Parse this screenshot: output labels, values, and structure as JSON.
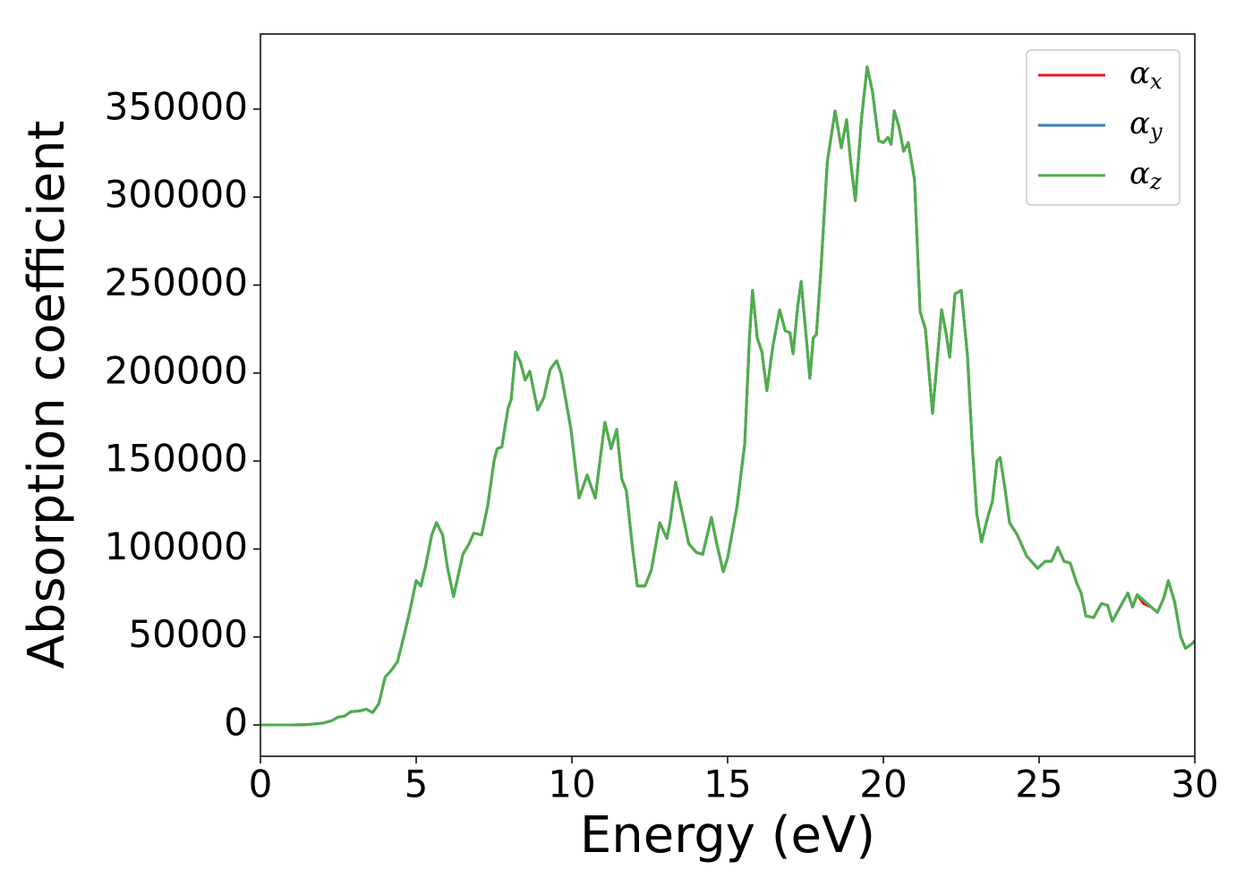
{
  "chart_data": {
    "type": "line",
    "xlabel": "Energy (eV)",
    "ylabel": "Absorption coefficient",
    "xlim": [
      0,
      30
    ],
    "ylim": [
      -17800,
      392700
    ],
    "xticks": [
      0,
      5,
      10,
      15,
      20,
      25,
      30
    ],
    "yticks": [
      0,
      50000,
      100000,
      150000,
      200000,
      250000,
      300000,
      350000
    ],
    "legend": "upper right",
    "x": [
      0,
      1,
      1.5,
      2,
      2.3,
      2.5,
      2.7,
      2.9,
      3.2,
      3.4,
      3.6,
      3.8,
      4.0,
      4.2,
      4.4,
      4.6,
      4.8,
      5.0,
      5.15,
      5.3,
      5.5,
      5.65,
      5.85,
      6.0,
      6.2,
      6.35,
      6.5,
      6.7,
      6.85,
      7.1,
      7.3,
      7.5,
      7.6,
      7.75,
      7.95,
      8.05,
      8.19,
      8.35,
      8.5,
      8.65,
      8.9,
      9.1,
      9.3,
      9.51,
      9.65,
      9.8,
      9.97,
      10.23,
      10.49,
      10.75,
      10.9,
      11.06,
      11.26,
      11.44,
      11.6,
      11.75,
      11.95,
      12.1,
      12.35,
      12.55,
      12.82,
      13.05,
      13.15,
      13.33,
      13.55,
      13.75,
      14.0,
      14.2,
      14.48,
      14.65,
      14.86,
      15.0,
      15.3,
      15.55,
      15.7,
      15.8,
      15.95,
      16.1,
      16.26,
      16.45,
      16.67,
      16.85,
      17.0,
      17.1,
      17.25,
      17.36,
      17.5,
      17.64,
      17.75,
      17.85,
      18.0,
      18.2,
      18.45,
      18.65,
      18.82,
      18.95,
      19.1,
      19.3,
      19.48,
      19.65,
      19.85,
      20.0,
      20.15,
      20.25,
      20.35,
      20.5,
      20.65,
      20.8,
      21.0,
      21.18,
      21.35,
      21.58,
      21.87,
      22.0,
      22.13,
      22.3,
      22.5,
      22.7,
      22.85,
      23.0,
      23.15,
      23.35,
      23.5,
      23.65,
      23.75,
      23.9,
      24.05,
      24.3,
      24.6,
      24.95,
      25.2,
      25.4,
      25.6,
      25.8,
      26.0,
      26.2,
      26.35,
      26.5,
      26.75,
      27.0,
      27.2,
      27.35,
      27.6,
      27.85,
      28.0,
      28.15,
      28.35,
      28.6,
      28.8,
      29.0,
      29.15,
      29.35,
      29.55,
      29.7,
      29.9,
      30.0
    ],
    "series": [
      {
        "name": "αx",
        "color": "#e41a1c",
        "values": [
          0,
          0,
          200,
          1000,
          2500,
          4500,
          5000,
          7500,
          8000,
          9000,
          7000,
          12000,
          27000,
          31000,
          36000,
          50000,
          65000,
          82000,
          79000,
          90000,
          108000,
          115000,
          108000,
          90000,
          73000,
          85000,
          97000,
          103000,
          109000,
          108000,
          125000,
          150000,
          157000,
          158000,
          180000,
          185000,
          212000,
          206000,
          196000,
          201000,
          179000,
          186000,
          202000,
          207000,
          200000,
          185000,
          168000,
          129000,
          142000,
          129000,
          150000,
          172000,
          157000,
          168000,
          140000,
          133000,
          100000,
          79000,
          79000,
          88000,
          115000,
          106000,
          115000,
          138000,
          120000,
          103000,
          98000,
          97000,
          118000,
          103000,
          87000,
          95000,
          124000,
          160000,
          220000,
          247000,
          220000,
          212000,
          190000,
          215000,
          236000,
          224000,
          223000,
          211000,
          238000,
          252000,
          225000,
          197000,
          220000,
          222000,
          260000,
          320000,
          349000,
          328000,
          344000,
          320000,
          298000,
          345000,
          374000,
          360000,
          332000,
          331000,
          334000,
          330000,
          349000,
          340000,
          326000,
          331000,
          310000,
          235000,
          225000,
          177000,
          236000,
          224000,
          209000,
          245000,
          247000,
          210000,
          160000,
          120000,
          104000,
          118000,
          127000,
          150000,
          152000,
          135000,
          115000,
          108000,
          96000,
          89000,
          93000,
          93000,
          101000,
          93000,
          92000,
          81000,
          75000,
          62000,
          61000,
          69000,
          68000,
          59000,
          67000,
          75000,
          67000,
          74000,
          69000,
          67000,
          64000,
          72000,
          82000,
          70000,
          50000,
          43500,
          46000,
          48000
        ]
      },
      {
        "name": "αy",
        "color": "#377eb8",
        "values": [
          0,
          0,
          200,
          1000,
          2500,
          4500,
          5000,
          7500,
          8000,
          9000,
          7000,
          12000,
          27000,
          31000,
          36000,
          50000,
          65000,
          82000,
          79000,
          90000,
          108000,
          115000,
          108000,
          90000,
          73000,
          85000,
          97000,
          103000,
          109000,
          108000,
          125000,
          150000,
          157000,
          158000,
          180000,
          185000,
          212000,
          206000,
          196000,
          201000,
          179000,
          186000,
          202000,
          207000,
          200000,
          185000,
          168000,
          129000,
          142000,
          129000,
          150000,
          172000,
          157000,
          168000,
          140000,
          133000,
          100000,
          79000,
          79000,
          88000,
          115000,
          106000,
          115000,
          138000,
          120000,
          103000,
          98000,
          97000,
          118000,
          103000,
          87000,
          95000,
          124000,
          160000,
          220000,
          247000,
          220000,
          212000,
          190000,
          215000,
          236000,
          224000,
          223000,
          211000,
          238000,
          252000,
          225000,
          197000,
          220000,
          222000,
          260000,
          320000,
          349000,
          328000,
          344000,
          320000,
          298000,
          345000,
          374000,
          360000,
          332000,
          331000,
          334000,
          330000,
          349000,
          340000,
          326000,
          331000,
          310000,
          235000,
          225000,
          177000,
          236000,
          224000,
          209000,
          245000,
          247000,
          210000,
          160000,
          120000,
          104000,
          118000,
          127000,
          150000,
          152000,
          135000,
          115000,
          108000,
          96000,
          89000,
          93000,
          93000,
          101000,
          93000,
          92000,
          81000,
          75000,
          62000,
          61000,
          69000,
          68000,
          59000,
          67000,
          75000,
          67000,
          74000,
          71000,
          67000,
          64000,
          72000,
          82000,
          70000,
          50000,
          43500,
          46000,
          48000
        ]
      },
      {
        "name": "αz",
        "color": "#4daf4a",
        "values": [
          0,
          0,
          200,
          1000,
          2500,
          4500,
          5000,
          7500,
          8000,
          9000,
          7000,
          12000,
          27000,
          31000,
          36000,
          50000,
          65000,
          82000,
          79000,
          90000,
          108000,
          115000,
          108000,
          90000,
          73000,
          85000,
          97000,
          103000,
          109000,
          108000,
          125000,
          150000,
          157000,
          158000,
          180000,
          185000,
          212000,
          206000,
          196000,
          201000,
          179000,
          186000,
          202000,
          207000,
          200000,
          185000,
          168000,
          129000,
          142000,
          129000,
          150000,
          172000,
          157000,
          168000,
          140000,
          133000,
          100000,
          79000,
          79000,
          88000,
          115000,
          106000,
          115000,
          138000,
          120000,
          103000,
          98000,
          97000,
          118000,
          103000,
          87000,
          95000,
          124000,
          160000,
          220000,
          247000,
          220000,
          212000,
          190000,
          215000,
          236000,
          224000,
          223000,
          211000,
          238000,
          252000,
          225000,
          197000,
          220000,
          222000,
          260000,
          320000,
          349000,
          328000,
          344000,
          320000,
          298000,
          345000,
          374000,
          360000,
          332000,
          331000,
          334000,
          330000,
          349000,
          340000,
          326000,
          331000,
          310000,
          235000,
          225000,
          177000,
          236000,
          224000,
          209000,
          245000,
          247000,
          210000,
          160000,
          120000,
          104000,
          118000,
          127000,
          150000,
          152000,
          135000,
          115000,
          108000,
          96000,
          89000,
          93000,
          93000,
          101000,
          93000,
          92000,
          81000,
          75000,
          62000,
          61000,
          69000,
          68000,
          59000,
          67000,
          75000,
          67000,
          74000,
          71000,
          67000,
          64000,
          72000,
          82000,
          70000,
          50000,
          43500,
          46000,
          48000
        ]
      }
    ]
  }
}
